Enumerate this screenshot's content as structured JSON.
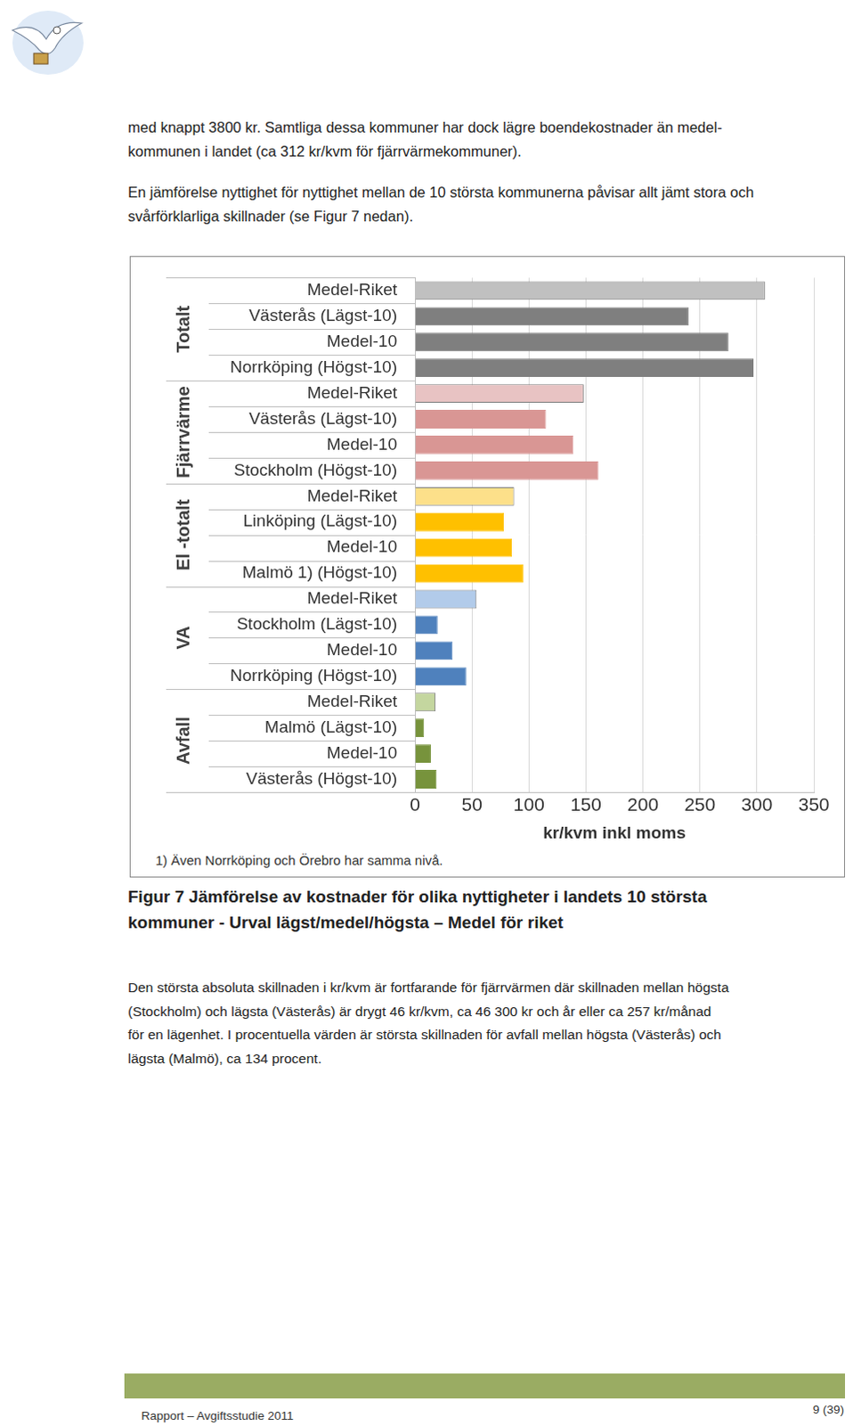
{
  "paragraphs": [
    [
      "med knappt 3800 kr. Samtliga dessa kommuner har dock lägre boendekostnader än medel-",
      "kommunen i landet (ca 312 kr/kvm för fjärrvärmekommuner)."
    ],
    [
      "En jämförelse nyttighet för nyttighet mellan de 10 största kommunerna påvisar allt jämt stora och",
      "svårförklarliga skillnader (se Figur 7 nedan)."
    ]
  ],
  "chart_data": {
    "type": "bar",
    "orientation": "horizontal",
    "groups": [
      "Totalt",
      "Fjärrvärme",
      "El -totalt",
      "VA",
      "Avfall"
    ],
    "categories": [
      "Medel-Riket",
      "Västerås (Lägst-10)",
      "Medel-10",
      "Norrköping (Högst-10)",
      "Medel-Riket",
      "Västerås (Lägst-10)",
      "Medel-10",
      "Stockholm (Högst-10)",
      "Medel-Riket",
      "Linköping (Lägst-10)",
      "Medel-10",
      "Malmö 1) (Högst-10)",
      "Medel-Riket",
      "Stockholm (Lägst-10)",
      "Medel-10",
      "Norrköping (Högst-10)",
      "Medel-Riket",
      "Malmö (Lägst-10)",
      "Medel-10",
      "Västerås (Högst-10)"
    ],
    "values": [
      307,
      240,
      275,
      297,
      148,
      115,
      139,
      161,
      87,
      78,
      85,
      95,
      54,
      20,
      33,
      45,
      18,
      8,
      14,
      19
    ],
    "colors": [
      "#c0c0c0",
      "#7f7f7f",
      "#7f7f7f",
      "#7f7f7f",
      "#e8c3c3",
      "#d99694",
      "#d99694",
      "#d99694",
      "#fde08a",
      "#ffc000",
      "#ffc000",
      "#ffc000",
      "#b2cbea",
      "#4f81bd",
      "#4f81bd",
      "#4f81bd",
      "#c4d69f",
      "#77933c",
      "#77933c",
      "#77933c"
    ],
    "xlim": [
      0,
      350
    ],
    "xticks": [
      0,
      50,
      100,
      150,
      200,
      250,
      300,
      350
    ],
    "x_label": "kr/kvm inkl moms",
    "annotation": "1) Även Norrköping och Örebro har samma nivå.",
    "grid": true
  },
  "caption": [
    "Figur 7 Jämförelse av kostnader för olika nyttigheter i landets 10 största",
    "kommuner - Urval lägst/medel/högsta – Medel för riket"
  ],
  "body": [
    "Den största absoluta skillnaden i kr/kvm är fortfarande för fjärrvärmen där skillnaden mellan högsta",
    "(Stockholm) och lägsta (Västerås) är drygt 46 kr/kvm, ca 46 300 kr och år eller ca 257 kr/månad",
    "för en lägenhet. I procentuella värden är största skillnaden för avfall mellan högsta (Västerås) och",
    "lägsta (Malmö), ca 134 procent."
  ],
  "footer": {
    "left": "Rapport – Avgiftsstudie 2011",
    "page": "9 (39)"
  }
}
